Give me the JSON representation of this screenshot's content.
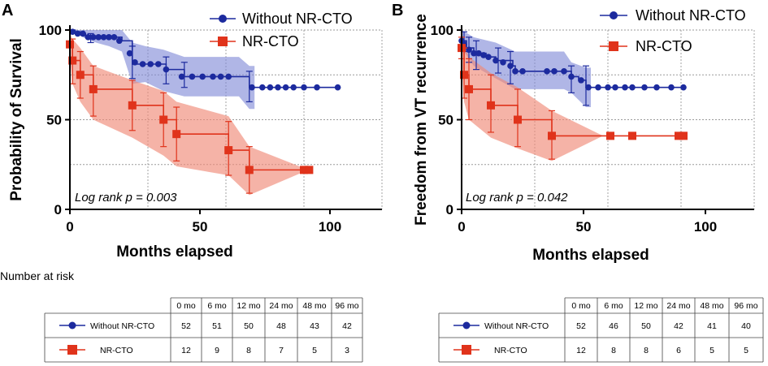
{
  "risk_title": "Number at risk",
  "chart_data": [
    {
      "type": "line",
      "panel": "A",
      "ylabel": "Probability of Survival",
      "xlabel": "Months elapsed",
      "xlim": [
        0,
        120
      ],
      "ylim": [
        0,
        100
      ],
      "xticks": [
        0,
        50,
        100
      ],
      "yticks": [
        0,
        50,
        100
      ],
      "annotation": "Log rank p = 0.003",
      "series": [
        {
          "name": "Without NR-CTO",
          "color": "#1c2a9e",
          "marker": "circle",
          "steps": [
            [
              0,
              100
            ],
            [
              2,
              99
            ],
            [
              4,
              98
            ],
            [
              6,
              96
            ],
            [
              20,
              94
            ],
            [
              24,
              81
            ],
            [
              28,
              81
            ],
            [
              37,
              78
            ],
            [
              44,
              74
            ],
            [
              65,
              74
            ],
            [
              69,
              68
            ],
            [
              103,
              68
            ]
          ],
          "markers": [
            [
              1,
              99
            ],
            [
              3,
              98
            ],
            [
              5,
              98
            ],
            [
              7,
              96
            ],
            [
              9,
              96
            ],
            [
              11,
              96
            ],
            [
              13,
              96
            ],
            [
              15,
              96
            ],
            [
              17,
              96
            ],
            [
              19,
              94
            ],
            [
              23,
              87
            ],
            [
              25,
              82
            ],
            [
              28,
              81
            ],
            [
              31,
              81
            ],
            [
              34,
              81
            ],
            [
              37,
              78
            ],
            [
              43,
              74
            ],
            [
              47,
              74
            ],
            [
              51,
              74
            ],
            [
              55,
              74
            ],
            [
              58,
              74
            ],
            [
              61,
              74
            ],
            [
              70,
              68
            ],
            [
              74,
              68
            ],
            [
              77,
              68
            ],
            [
              80,
              68
            ],
            [
              83,
              68
            ],
            [
              86,
              68
            ],
            [
              90,
              68
            ],
            [
              95,
              68
            ],
            [
              103,
              68
            ]
          ],
          "band": [
            [
              0,
              100,
              100
            ],
            [
              5,
              100,
              96
            ],
            [
              10,
              100,
              93
            ],
            [
              15,
              100,
              91
            ],
            [
              20,
              100,
              88
            ],
            [
              24,
              93,
              70
            ],
            [
              29,
              91,
              71
            ],
            [
              36,
              89,
              66
            ],
            [
              44,
              85,
              63
            ],
            [
              65,
              85,
              63
            ],
            [
              69,
              80,
              56
            ],
            [
              71,
              80,
              56
            ]
          ],
          "errorbars": [
            [
              8,
              98,
              93
            ],
            [
              24,
              91,
              73
            ],
            [
              37,
              85,
              70
            ],
            [
              44,
              82,
              68
            ],
            [
              69,
              77,
              60
            ]
          ]
        },
        {
          "name": "NR-CTO",
          "color": "#e0331b",
          "marker": "square",
          "steps": [
            [
              0,
              92
            ],
            [
              1,
              83
            ],
            [
              4,
              75
            ],
            [
              9,
              67
            ],
            [
              24,
              58
            ],
            [
              36,
              50
            ],
            [
              41,
              42
            ],
            [
              61,
              33
            ],
            [
              69,
              22
            ],
            [
              92,
              22
            ]
          ],
          "markers": [
            [
              0,
              92
            ],
            [
              1,
              83
            ],
            [
              4,
              75
            ],
            [
              9,
              67
            ],
            [
              24,
              58
            ],
            [
              36,
              50
            ],
            [
              41,
              42
            ],
            [
              61,
              33
            ],
            [
              69,
              22
            ],
            [
              90,
              22
            ],
            [
              92,
              22
            ]
          ],
          "band": [
            [
              0,
              98,
              85
            ],
            [
              1,
              95,
              70
            ],
            [
              4,
              90,
              60
            ],
            [
              9,
              80,
              50
            ],
            [
              24,
              72,
              40
            ],
            [
              36,
              66,
              30
            ],
            [
              41,
              60,
              24
            ],
            [
              61,
              52,
              19
            ],
            [
              69,
              35,
              8
            ],
            [
              90,
              23,
              21
            ]
          ],
          "errorbars": [
            [
              1,
              95,
              70
            ],
            [
              4,
              88,
              62
            ],
            [
              9,
              80,
              52
            ],
            [
              24,
              72,
              44
            ],
            [
              36,
              65,
              35
            ],
            [
              41,
              57,
              27
            ],
            [
              61,
              49,
              19
            ],
            [
              69,
              35,
              9
            ]
          ]
        }
      ],
      "table": {
        "headers": [
          "0 mo",
          "6 mo",
          "12 mo",
          "24 mo",
          "48 mo",
          "96 mo"
        ],
        "rows": [
          {
            "label": "Without NR-CTO",
            "values": [
              "52",
              "51",
              "50",
              "48",
              "43",
              "42"
            ]
          },
          {
            "label": "NR-CTO",
            "values": [
              "12",
              "9",
              "8",
              "7",
              "5",
              "3"
            ]
          }
        ]
      }
    },
    {
      "type": "line",
      "panel": "B",
      "ylabel": "Freedom from VT recurrence",
      "xlabel": "Months elapsed",
      "xlim": [
        0,
        120
      ],
      "ylim": [
        0,
        100
      ],
      "xticks": [
        0,
        50,
        100
      ],
      "yticks": [
        0,
        50,
        100
      ],
      "annotation": "Log rank p = 0.042",
      "series": [
        {
          "name": "Without NR-CTO",
          "color": "#1c2a9e",
          "marker": "circle",
          "steps": [
            [
              0,
              94
            ],
            [
              2,
              90
            ],
            [
              5,
              87
            ],
            [
              10,
              85
            ],
            [
              14,
              83
            ],
            [
              21,
              80
            ],
            [
              22,
              77
            ],
            [
              42,
              77
            ],
            [
              45,
              74
            ],
            [
              48,
              72
            ],
            [
              51,
              68
            ],
            [
              91,
              68
            ]
          ],
          "markers": [
            [
              0,
              94
            ],
            [
              1,
              92
            ],
            [
              3,
              89
            ],
            [
              5,
              87
            ],
            [
              7,
              87
            ],
            [
              9,
              86
            ],
            [
              11,
              85
            ],
            [
              14,
              83
            ],
            [
              17,
              82
            ],
            [
              20,
              80
            ],
            [
              22,
              77
            ],
            [
              25,
              77
            ],
            [
              35,
              77
            ],
            [
              38,
              77
            ],
            [
              42,
              77
            ],
            [
              45,
              74
            ],
            [
              49,
              72
            ],
            [
              52,
              68
            ],
            [
              56,
              68
            ],
            [
              60,
              68
            ],
            [
              63,
              68
            ],
            [
              67,
              68
            ],
            [
              70,
              68
            ],
            [
              75,
              68
            ],
            [
              80,
              68
            ],
            [
              86,
              68
            ],
            [
              91,
              68
            ]
          ],
          "band": [
            [
              0,
              100,
              90
            ],
            [
              5,
              96,
              80
            ],
            [
              14,
              93,
              73
            ],
            [
              22,
              88,
              67
            ],
            [
              42,
              88,
              67
            ],
            [
              45,
              82,
              65
            ],
            [
              51,
              79,
              57
            ],
            [
              53,
              79,
              57
            ]
          ],
          "errorbars": [
            [
              1,
              99,
              88
            ],
            [
              3,
              96,
              82
            ],
            [
              6,
              94,
              78
            ],
            [
              15,
              90,
              76
            ],
            [
              20,
              88,
              70
            ],
            [
              45,
              80,
              65
            ],
            [
              51,
              80,
              58
            ]
          ]
        },
        {
          "name": "NR-CTO",
          "color": "#e0331b",
          "marker": "square",
          "steps": [
            [
              0,
              90
            ],
            [
              1,
              75
            ],
            [
              3,
              67
            ],
            [
              12,
              58
            ],
            [
              23,
              50
            ],
            [
              37,
              41
            ],
            [
              90,
              41
            ]
          ],
          "markers": [
            [
              0,
              90
            ],
            [
              1,
              75
            ],
            [
              3,
              67
            ],
            [
              12,
              58
            ],
            [
              23,
              50
            ],
            [
              37,
              41
            ],
            [
              61,
              41
            ],
            [
              70,
              41
            ],
            [
              89,
              41
            ],
            [
              91,
              41
            ]
          ],
          "band": [
            [
              0,
              98,
              82
            ],
            [
              1,
              92,
              60
            ],
            [
              3,
              85,
              50
            ],
            [
              12,
              76,
              40
            ],
            [
              23,
              68,
              34
            ],
            [
              37,
              55,
              27
            ],
            [
              58,
              41,
              41
            ]
          ],
          "errorbars": [
            [
              0,
              96,
              84
            ],
            [
              1,
              90,
              62
            ],
            [
              3,
              84,
              50
            ],
            [
              12,
              75,
              43
            ],
            [
              23,
              67,
              35
            ],
            [
              37,
              55,
              28
            ]
          ]
        }
      ],
      "table": {
        "headers": [
          "0 mo",
          "6 mo",
          "12 mo",
          "24 mo",
          "48 mo",
          "96 mo"
        ],
        "rows": [
          {
            "label": "Without NR-CTO",
            "values": [
              "52",
              "46",
              "50",
              "42",
              "41",
              "40"
            ]
          },
          {
            "label": "NR-CTO",
            "values": [
              "12",
              "8",
              "8",
              "6",
              "5",
              "5"
            ]
          }
        ]
      }
    }
  ]
}
